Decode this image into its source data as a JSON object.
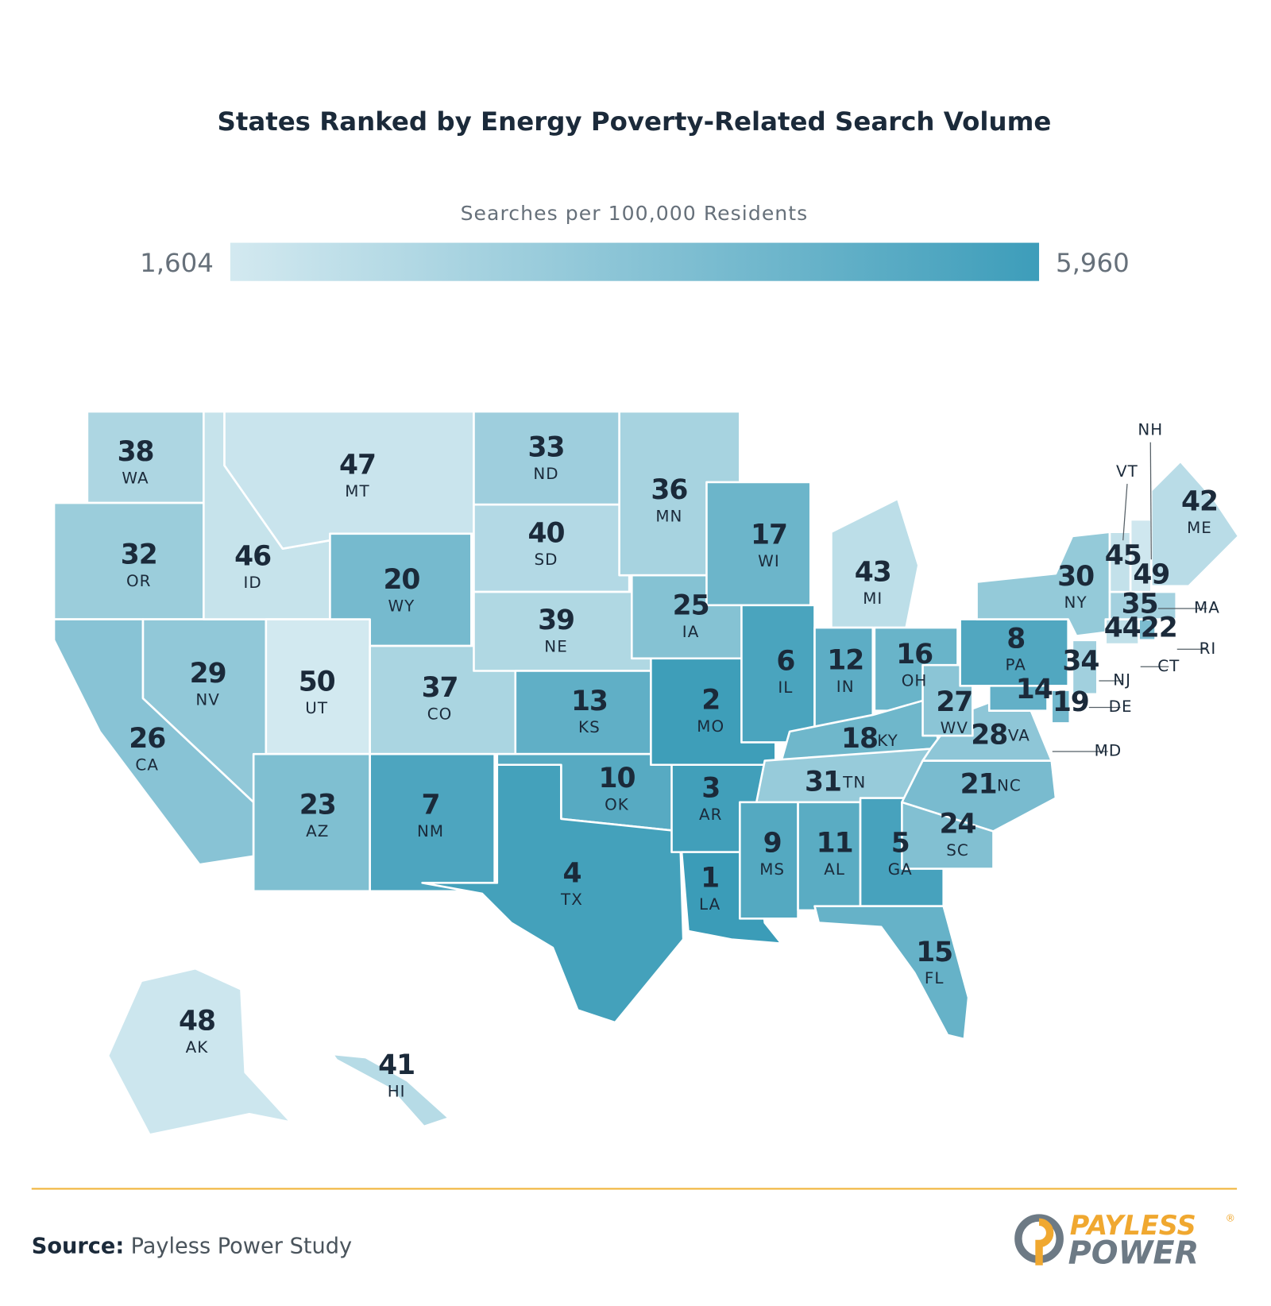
{
  "chart_data": {
    "type": "choropleth",
    "title": "States Ranked by Energy Poverty-Related Search Volume",
    "colorbar": {
      "title": "Searches per 100,000 Residents",
      "min": {
        "value": 1604,
        "label": "1,604"
      },
      "max": {
        "value": 5960,
        "label": "5,960"
      },
      "colors": [
        "#d3e9f0",
        "#3d9dba"
      ]
    },
    "states": [
      {
        "name": "WA",
        "rank": 38,
        "color": "#add6e2"
      },
      {
        "name": "OR",
        "rank": 32,
        "color": "#9bcddb"
      },
      {
        "name": "CA",
        "rank": 26,
        "color": "#88c3d5"
      },
      {
        "name": "NV",
        "rank": 29,
        "color": "#91c8d8"
      },
      {
        "name": "ID",
        "rank": 46,
        "color": "#c6e3eb"
      },
      {
        "name": "MT",
        "rank": 47,
        "color": "#c9e4ed"
      },
      {
        "name": "WY",
        "rank": 20,
        "color": "#76bace"
      },
      {
        "name": "UT",
        "rank": 50,
        "color": "#d2e9f0"
      },
      {
        "name": "CO",
        "rank": 37,
        "color": "#aad5e1"
      },
      {
        "name": "AZ",
        "rank": 23,
        "color": "#7fbfd1"
      },
      {
        "name": "NM",
        "rank": 7,
        "color": "#4da5bf"
      },
      {
        "name": "ND",
        "rank": 33,
        "color": "#9ecedd"
      },
      {
        "name": "SD",
        "rank": 40,
        "color": "#b3d9e5"
      },
      {
        "name": "NE",
        "rank": 39,
        "color": "#b0d8e3"
      },
      {
        "name": "KS",
        "rank": 13,
        "color": "#60afc6"
      },
      {
        "name": "OK",
        "rank": 10,
        "color": "#57aac2"
      },
      {
        "name": "TX",
        "rank": 4,
        "color": "#44a1bb"
      },
      {
        "name": "MN",
        "rank": 36,
        "color": "#a7d3e0"
      },
      {
        "name": "IA",
        "rank": 25,
        "color": "#85c2d3"
      },
      {
        "name": "MO",
        "rank": 2,
        "color": "#3e9eb9"
      },
      {
        "name": "AR",
        "rank": 3,
        "color": "#419fba"
      },
      {
        "name": "LA",
        "rank": 1,
        "color": "#3b9cb8"
      },
      {
        "name": "WI",
        "rank": 17,
        "color": "#6cb5ca"
      },
      {
        "name": "IL",
        "rank": 6,
        "color": "#4aa4be"
      },
      {
        "name": "MI",
        "rank": 43,
        "color": "#bcdee8"
      },
      {
        "name": "IN",
        "rank": 12,
        "color": "#5dadc5"
      },
      {
        "name": "OH",
        "rank": 16,
        "color": "#69b4c9"
      },
      {
        "name": "KY",
        "rank": 18,
        "color": "#6fb7cb"
      },
      {
        "name": "TN",
        "rank": 31,
        "color": "#97cbda"
      },
      {
        "name": "MS",
        "rank": 9,
        "color": "#54a9c1"
      },
      {
        "name": "AL",
        "rank": 11,
        "color": "#5aacc3"
      },
      {
        "name": "GA",
        "rank": 5,
        "color": "#47a2bd"
      },
      {
        "name": "FL",
        "rank": 15,
        "color": "#66b2c8"
      },
      {
        "name": "SC",
        "rank": 24,
        "color": "#82c0d2"
      },
      {
        "name": "NC",
        "rank": 21,
        "color": "#79bbcf"
      },
      {
        "name": "VA",
        "rank": 28,
        "color": "#8ec6d7"
      },
      {
        "name": "WV",
        "rank": 27,
        "color": "#8bc5d6"
      },
      {
        "name": "PA",
        "rank": 8,
        "color": "#51a7c0"
      },
      {
        "name": "NY",
        "rank": 30,
        "color": "#94cad9"
      },
      {
        "name": "MD",
        "rank": 14,
        "color": "#63b0c7"
      },
      {
        "name": "NJ",
        "rank": 34,
        "color": "#a1d0de"
      },
      {
        "name": "DE",
        "rank": 19,
        "color": "#72b8cd"
      },
      {
        "name": "CT",
        "rank": 44,
        "color": "#c0e0e9"
      },
      {
        "name": "RI",
        "rank": 22,
        "color": "#7cbdd0"
      },
      {
        "name": "MA",
        "rank": 35,
        "color": "#a4d1df"
      },
      {
        "name": "VT",
        "rank": 45,
        "color": "#c3e1ea"
      },
      {
        "name": "NH",
        "rank": 49,
        "color": "#cfe7ef"
      },
      {
        "name": "ME",
        "rank": 42,
        "color": "#b9dce7"
      },
      {
        "name": "AK",
        "rank": 48,
        "color": "#cce6ee"
      },
      {
        "name": "HI",
        "rank": 41,
        "color": "#b6dbe6"
      }
    ]
  },
  "source": {
    "label": "Source:",
    "text": "Payless Power Study"
  },
  "logo": {
    "line1": "PAYLESS",
    "mark": "®",
    "line2": "POWER"
  }
}
